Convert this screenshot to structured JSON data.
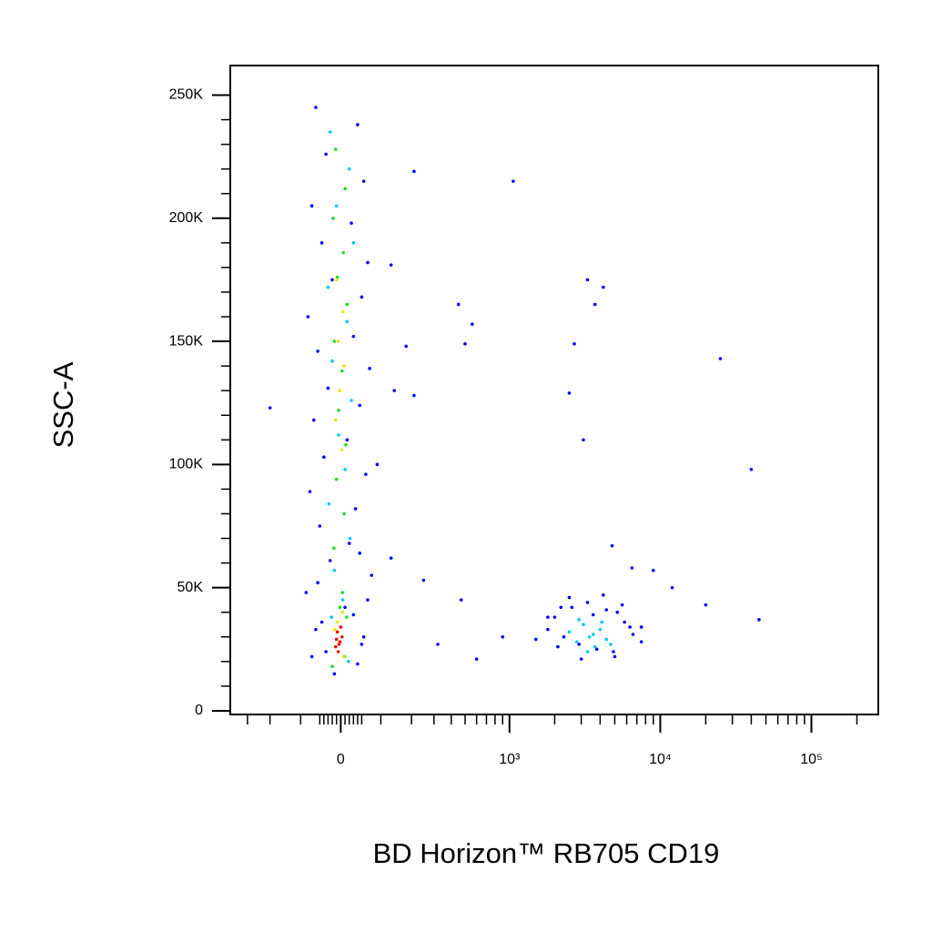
{
  "chart_data": {
    "type": "scatter",
    "x_label": "BD Horizon™ RB705 CD19",
    "y_label": "SSC-A",
    "xscale": "biexponential",
    "xlim": [
      -400,
      277000
    ],
    "ylim": [
      -1500,
      262000
    ],
    "xticks": [
      0,
      {
        "value": 1000,
        "label": "10³"
      },
      {
        "value": 10000,
        "label": "10⁴"
      },
      {
        "value": 100000,
        "label": "10⁵"
      }
    ],
    "xminorticks": [
      -300,
      -200,
      -100,
      -50,
      -40,
      -30,
      -20,
      -10,
      10,
      20,
      30,
      40,
      50,
      100,
      200,
      300,
      400,
      500,
      600,
      700,
      800,
      900,
      2000,
      3000,
      4000,
      5000,
      6000,
      7000,
      8000,
      9000,
      20000,
      30000,
      40000,
      50000,
      60000,
      70000,
      80000,
      90000,
      200000
    ],
    "yticks": [
      0,
      {
        "value": 50000,
        "label": "50K"
      },
      {
        "value": 100000,
        "label": "100K"
      },
      {
        "value": 150000,
        "label": "150K"
      },
      {
        "value": 200000,
        "label": "200K"
      },
      {
        "value": 250000,
        "label": "250K"
      }
    ],
    "yminorticks": [
      10000,
      20000,
      30000,
      40000,
      60000,
      70000,
      80000,
      90000,
      110000,
      120000,
      130000,
      140000,
      160000,
      170000,
      180000,
      190000,
      210000,
      220000,
      230000,
      240000
    ],
    "series": [
      {
        "color": "#0000ff",
        "x": [
          -60,
          40,
          -35,
          55,
          -70,
          25,
          -45,
          65,
          -20,
          50,
          -80,
          30,
          -55,
          70,
          -30,
          45,
          -65,
          15,
          -40,
          60,
          -75,
          35,
          -50,
          20,
          -25,
          75,
          -85,
          10,
          -45,
          55,
          -35,
          40,
          -60,
          50,
          -15,
          65,
          -70,
          30,
          -55,
          45,
          210,
          130,
          450,
          560,
          -200,
          500,
          140,
          210,
          180,
          90,
          1060,
          3300,
          4200,
          3700,
          2700,
          2500,
          3100,
          25000,
          40000,
          4800,
          6500,
          9000,
          12000,
          20000,
          45000,
          470,
          320,
          130,
          250,
          900,
          1500,
          1800,
          2200,
          7500,
          5200,
          600,
          1800,
          2000,
          2300,
          2600,
          2900,
          3300,
          3800,
          4400,
          5000,
          5800,
          6600,
          7500,
          2100,
          2500,
          3000,
          3600,
          4200,
          4900,
          5600,
          6300
        ],
        "y": [
          245000,
          238000,
          226000,
          215000,
          205000,
          198000,
          190000,
          182000,
          175000,
          168000,
          160000,
          152000,
          146000,
          139000,
          131000,
          124000,
          118000,
          110000,
          103000,
          96000,
          89000,
          82000,
          75000,
          68000,
          61000,
          55000,
          48000,
          42000,
          36000,
          30000,
          24000,
          19000,
          33000,
          27000,
          15000,
          45000,
          22000,
          39000,
          52000,
          64000,
          219000,
          181000,
          165000,
          157000,
          123000,
          149000,
          130000,
          128000,
          148000,
          100000,
          215000,
          175000,
          172000,
          165000,
          149000,
          129000,
          110000,
          143000,
          98000,
          67000,
          58000,
          57000,
          50000,
          43000,
          37000,
          45000,
          27000,
          62000,
          53000,
          30000,
          29000,
          38000,
          42000,
          34000,
          40000,
          21000,
          33000,
          38000,
          30000,
          42000,
          27000,
          44000,
          25000,
          41000,
          22000,
          36000,
          31000,
          28000,
          26000,
          46000,
          21000,
          39000,
          47000,
          24000,
          43000,
          34000
        ]
      },
      {
        "color": "#00c8ff",
        "x": [
          -25,
          20,
          -10,
          30,
          -30,
          15,
          -20,
          25,
          -5,
          10,
          -28,
          22,
          -15,
          5,
          -22,
          18,
          2500,
          2800,
          3100,
          3400,
          3700,
          4000,
          4400,
          2900,
          3300,
          3600,
          4100,
          4700
        ],
        "y": [
          235000,
          220000,
          205000,
          190000,
          172000,
          158000,
          142000,
          126000,
          112000,
          98000,
          84000,
          70000,
          57000,
          45000,
          38000,
          20000,
          32000,
          28000,
          35000,
          30000,
          26000,
          33000,
          29000,
          37000,
          24000,
          31000,
          36000,
          27000
        ]
      },
      {
        "color": "#22dd22",
        "x": [
          -12,
          10,
          -18,
          6,
          -8,
          15,
          -15,
          3,
          -5,
          12,
          -10,
          8,
          -16,
          4,
          -2,
          14,
          -20,
          9
        ],
        "y": [
          228000,
          212000,
          200000,
          186000,
          176000,
          165000,
          150000,
          138000,
          122000,
          108000,
          94000,
          80000,
          66000,
          48000,
          42000,
          38000,
          18000,
          22000
        ]
      },
      {
        "color": "#e8e800",
        "x": [
          -10,
          5,
          -6,
          8,
          -3,
          -12,
          2,
          -8,
          4,
          -14,
          7
        ],
        "y": [
          175000,
          162000,
          150000,
          140000,
          130000,
          118000,
          106000,
          36000,
          40000,
          33000,
          22000
        ]
      },
      {
        "color": "#ee1100",
        "x": [
          -8,
          -2,
          -12,
          3,
          -6,
          0,
          -10,
          -4
        ],
        "y": [
          32000,
          28000,
          26000,
          30000,
          24000,
          34000,
          29000,
          27000
        ]
      }
    ]
  }
}
